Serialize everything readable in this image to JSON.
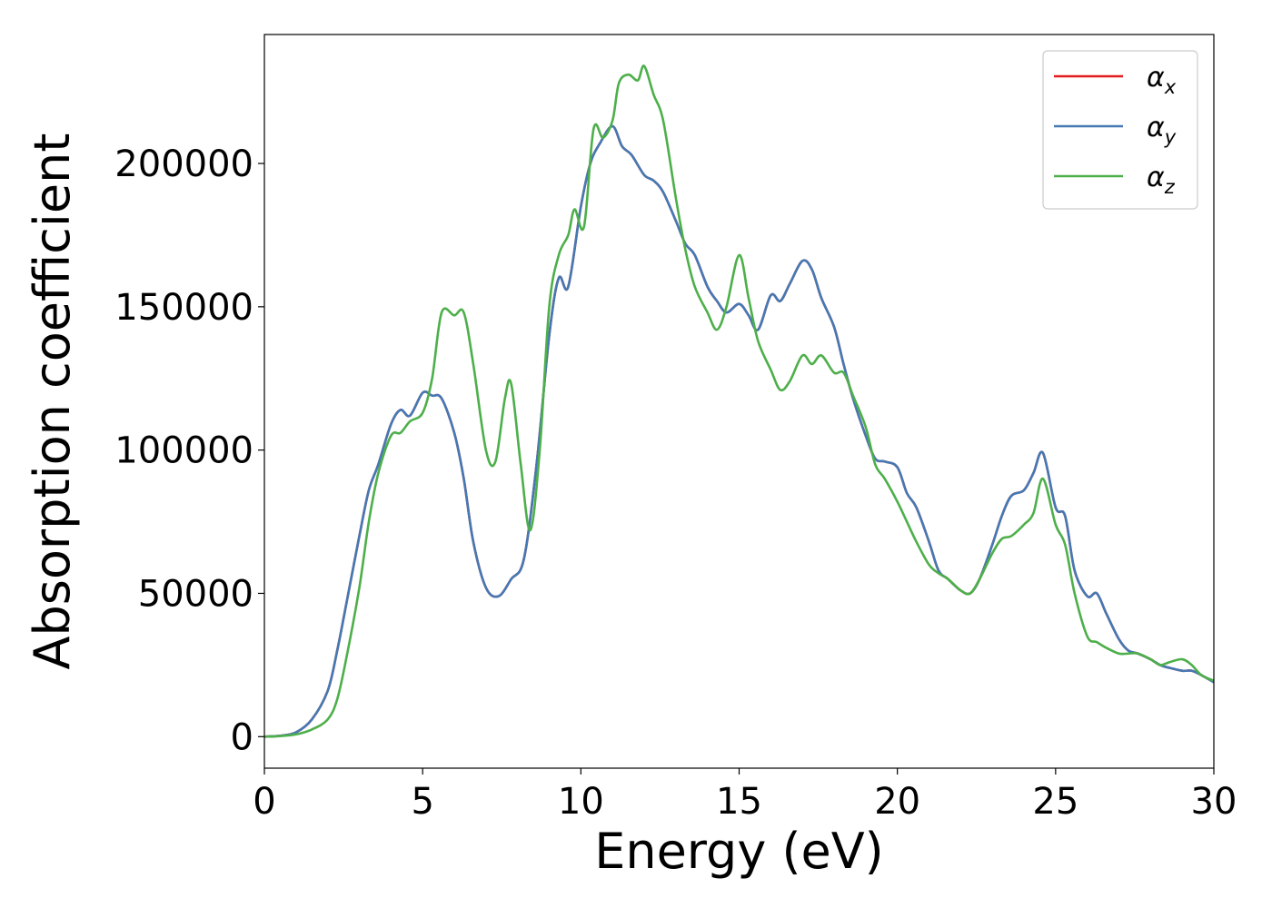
{
  "chart_data": {
    "type": "line",
    "title": "",
    "xlabel": "Energy (eV)",
    "ylabel": "Absorption coefficient",
    "xlim": [
      0,
      30
    ],
    "ylim": [
      -11000,
      245000
    ],
    "xticks": [
      0,
      5,
      10,
      15,
      20,
      25,
      30
    ],
    "xtick_labels": [
      "0",
      "5",
      "10",
      "15",
      "20",
      "25",
      "30"
    ],
    "yticks": [
      0,
      50000,
      100000,
      150000,
      200000
    ],
    "ytick_labels": [
      "0",
      "50000",
      "100000",
      "150000",
      "200000"
    ],
    "grid": false,
    "legend_position": "top-right",
    "series": [
      {
        "name": "α_x",
        "label_main": "α",
        "label_sub": "x",
        "color": "#e41a1c",
        "x": [
          0,
          0.5,
          1,
          1.5,
          2,
          2.3,
          2.6,
          3,
          3.3,
          3.6,
          4,
          4.3,
          4.6,
          5,
          5.3,
          5.6,
          6,
          6.3,
          6.6,
          7,
          7.4,
          7.8,
          8.2,
          8.6,
          9,
          9.3,
          9.6,
          10,
          10.3,
          10.6,
          11,
          11.3,
          11.6,
          12,
          12.3,
          12.6,
          13,
          13.3,
          13.6,
          14,
          14.3,
          14.6,
          15,
          15.3,
          15.6,
          16,
          16.3,
          16.6,
          17,
          17.3,
          17.6,
          18,
          18.3,
          18.6,
          19,
          19.3,
          19.6,
          20,
          20.3,
          20.6,
          21,
          21.3,
          21.6,
          22,
          22.3,
          22.6,
          23,
          23.3,
          23.6,
          24,
          24.3,
          24.6,
          25,
          25.3,
          25.6,
          26,
          26.3,
          26.6,
          27,
          27.3,
          27.6,
          28,
          28.3,
          28.6,
          29,
          29.3,
          29.6,
          30
        ],
        "y": [
          0,
          300,
          1500,
          6000,
          16000,
          30000,
          47000,
          70000,
          86000,
          95000,
          109000,
          114000,
          112000,
          120000,
          119000,
          118000,
          106000,
          90000,
          68000,
          52000,
          49000,
          55000,
          62000,
          95000,
          140000,
          160000,
          157000,
          185000,
          200000,
          207000,
          213000,
          206000,
          203000,
          196000,
          194000,
          190000,
          180000,
          172000,
          168000,
          157000,
          152000,
          148000,
          151000,
          147000,
          142000,
          154000,
          152000,
          158000,
          166000,
          163000,
          153000,
          143000,
          130000,
          118000,
          105000,
          97000,
          96000,
          94000,
          85000,
          80000,
          68000,
          58000,
          55000,
          51000,
          50000,
          55000,
          67000,
          77000,
          84000,
          86000,
          92000,
          99000,
          80000,
          77000,
          58000,
          49000,
          50000,
          43000,
          34000,
          30000,
          29000,
          27000,
          25000,
          24000,
          23000,
          23000,
          21500,
          19000
        ],
        "visible_line": false
      },
      {
        "name": "α_y",
        "label_main": "α",
        "label_sub": "y",
        "color": "#4479b4",
        "x": [
          0,
          0.5,
          1,
          1.5,
          2,
          2.3,
          2.6,
          3,
          3.3,
          3.6,
          4,
          4.3,
          4.6,
          5,
          5.3,
          5.6,
          6,
          6.3,
          6.6,
          7,
          7.4,
          7.8,
          8.2,
          8.6,
          9,
          9.3,
          9.6,
          10,
          10.3,
          10.6,
          11,
          11.3,
          11.6,
          12,
          12.3,
          12.6,
          13,
          13.3,
          13.6,
          14,
          14.3,
          14.6,
          15,
          15.3,
          15.6,
          16,
          16.3,
          16.6,
          17,
          17.3,
          17.6,
          18,
          18.3,
          18.6,
          19,
          19.3,
          19.6,
          20,
          20.3,
          20.6,
          21,
          21.3,
          21.6,
          22,
          22.3,
          22.6,
          23,
          23.3,
          23.6,
          24,
          24.3,
          24.6,
          25,
          25.3,
          25.6,
          26,
          26.3,
          26.6,
          27,
          27.3,
          27.6,
          28,
          28.3,
          28.6,
          29,
          29.3,
          29.6,
          30
        ],
        "y": [
          0,
          300,
          1500,
          6000,
          16000,
          30000,
          47000,
          70000,
          86000,
          95000,
          109000,
          114000,
          112000,
          120000,
          119000,
          118000,
          106000,
          90000,
          68000,
          52000,
          49000,
          55000,
          62000,
          95000,
          140000,
          160000,
          157000,
          185000,
          200000,
          207000,
          213000,
          206000,
          203000,
          196000,
          194000,
          190000,
          180000,
          172000,
          168000,
          157000,
          152000,
          148000,
          151000,
          147000,
          142000,
          154000,
          152000,
          158000,
          166000,
          163000,
          153000,
          143000,
          130000,
          118000,
          105000,
          97000,
          96000,
          94000,
          85000,
          80000,
          68000,
          58000,
          55000,
          51000,
          50000,
          55000,
          67000,
          77000,
          84000,
          86000,
          92000,
          99000,
          80000,
          77000,
          58000,
          49000,
          50000,
          43000,
          34000,
          30000,
          29000,
          27000,
          25000,
          24000,
          23000,
          23000,
          21500,
          19000
        ]
      },
      {
        "name": "α_z",
        "label_main": "α",
        "label_sub": "z",
        "color": "#4daf4a",
        "x": [
          0,
          0.5,
          1,
          1.5,
          2,
          2.3,
          2.6,
          3,
          3.3,
          3.6,
          4,
          4.3,
          4.6,
          5,
          5.3,
          5.6,
          6,
          6.3,
          6.6,
          7,
          7.3,
          7.6,
          7.8,
          8.1,
          8.4,
          8.7,
          9,
          9.3,
          9.6,
          9.8,
          10.1,
          10.4,
          10.7,
          11,
          11.2,
          11.5,
          11.8,
          12,
          12.3,
          12.6,
          13,
          13.3,
          13.6,
          14,
          14.3,
          14.6,
          15,
          15.3,
          15.6,
          16,
          16.3,
          16.6,
          17,
          17.3,
          17.6,
          18,
          18.3,
          18.6,
          19,
          19.3,
          19.6,
          20,
          20.3,
          20.6,
          21,
          21.3,
          21.6,
          22,
          22.3,
          22.6,
          23,
          23.3,
          23.6,
          24,
          24.3,
          24.6,
          25,
          25.3,
          25.6,
          26,
          26.3,
          26.6,
          27,
          27.3,
          27.6,
          28,
          28.3,
          28.6,
          29,
          29.3,
          29.6,
          30
        ],
        "y": [
          0,
          200,
          800,
          2500,
          6000,
          13000,
          28000,
          52000,
          75000,
          92000,
          105000,
          106000,
          110000,
          113000,
          125000,
          148000,
          147000,
          148000,
          130000,
          100000,
          96000,
          118000,
          123000,
          95000,
          72000,
          100000,
          150000,
          168000,
          175000,
          184000,
          178000,
          212000,
          209000,
          215000,
          228000,
          231000,
          229000,
          234000,
          224000,
          215000,
          188000,
          170000,
          157000,
          148000,
          142000,
          150000,
          168000,
          153000,
          138000,
          128000,
          121000,
          124000,
          133000,
          130000,
          133000,
          127000,
          127000,
          119000,
          108000,
          95000,
          90000,
          82000,
          75000,
          68000,
          60000,
          57000,
          55000,
          51000,
          50000,
          55000,
          64000,
          69000,
          70000,
          74000,
          78000,
          90000,
          74000,
          67000,
          50000,
          35000,
          33000,
          31000,
          29000,
          29000,
          29000,
          27000,
          25000,
          26000,
          27000,
          25000,
          21500,
          19500
        ]
      }
    ]
  }
}
